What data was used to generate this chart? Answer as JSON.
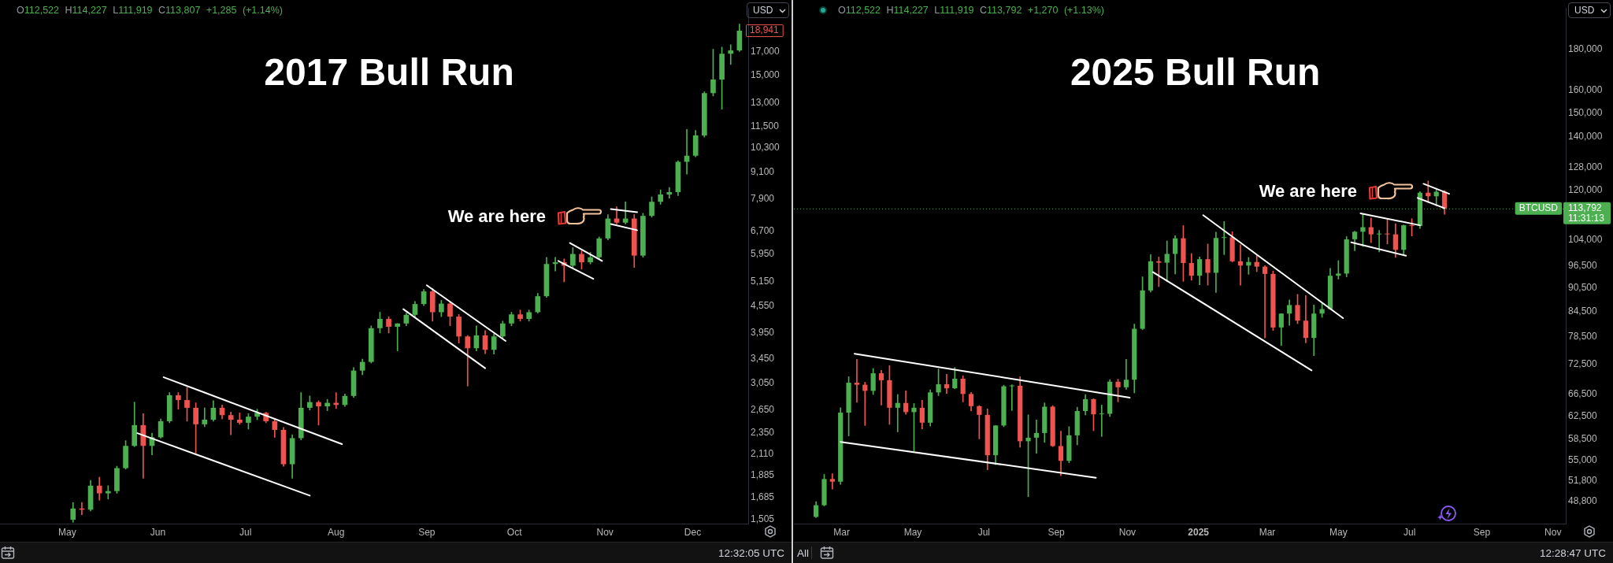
{
  "chart_data": [
    {
      "type": "candlestick",
      "title": "2017 Bull Run",
      "log": true,
      "xlim": [
        "2017-04-08",
        "2017-12-20"
      ],
      "xticks": [
        {
          "value": "2017-05-01",
          "label": "May"
        },
        {
          "value": "2017-06-01",
          "label": "Jun"
        },
        {
          "value": "2017-07-01",
          "label": "Jul"
        },
        {
          "value": "2017-08-01",
          "label": "Aug"
        },
        {
          "value": "2017-09-01",
          "label": "Sep"
        },
        {
          "value": "2017-10-01",
          "label": "Oct"
        },
        {
          "value": "2017-11-01",
          "label": "Nov"
        },
        {
          "value": "2017-12-01",
          "label": "Dec"
        }
      ],
      "ylim": [
        1470,
        21300
      ],
      "yticks": [
        {
          "value": 1505,
          "label": "1,505"
        },
        {
          "value": 1685,
          "label": "1,685"
        },
        {
          "value": 1885,
          "label": "1,885"
        },
        {
          "value": 2110,
          "label": "2,110"
        },
        {
          "value": 2350,
          "label": "2,350"
        },
        {
          "value": 2650,
          "label": "2,650"
        },
        {
          "value": 3050,
          "label": "3,050"
        },
        {
          "value": 3450,
          "label": "3,450"
        },
        {
          "value": 3950,
          "label": "3,950"
        },
        {
          "value": 4550,
          "label": "4,550"
        },
        {
          "value": 5150,
          "label": "5,150"
        },
        {
          "value": 5950,
          "label": "5,950"
        },
        {
          "value": 6700,
          "label": "6,700"
        },
        {
          "value": 7900,
          "label": "7,900"
        },
        {
          "value": 9100,
          "label": "9,100"
        },
        {
          "value": 10300,
          "label": "10,300"
        },
        {
          "value": 11500,
          "label": "11,500"
        },
        {
          "value": 13000,
          "label": "13,000"
        },
        {
          "value": 15000,
          "label": "15,000"
        },
        {
          "value": 17000,
          "label": "17,000"
        }
      ],
      "x": [
        "2017-05-03",
        "2017-05-06",
        "2017-05-09",
        "2017-05-12",
        "2017-05-15",
        "2017-05-18",
        "2017-05-21",
        "2017-05-24",
        "2017-05-27",
        "2017-05-30",
        "2017-06-02",
        "2017-06-05",
        "2017-06-08",
        "2017-06-11",
        "2017-06-14",
        "2017-06-17",
        "2017-06-20",
        "2017-06-23",
        "2017-06-26",
        "2017-06-29",
        "2017-07-02",
        "2017-07-05",
        "2017-07-08",
        "2017-07-11",
        "2017-07-14",
        "2017-07-17",
        "2017-07-20",
        "2017-07-23",
        "2017-07-26",
        "2017-07-29",
        "2017-08-01",
        "2017-08-04",
        "2017-08-07",
        "2017-08-10",
        "2017-08-13",
        "2017-08-16",
        "2017-08-19",
        "2017-08-22",
        "2017-08-25",
        "2017-08-28",
        "2017-08-31",
        "2017-09-03",
        "2017-09-06",
        "2017-09-09",
        "2017-09-12",
        "2017-09-15",
        "2017-09-18",
        "2017-09-21",
        "2017-09-24",
        "2017-09-27",
        "2017-09-30",
        "2017-10-03",
        "2017-10-06",
        "2017-10-09",
        "2017-10-12",
        "2017-10-15",
        "2017-10-18",
        "2017-10-21",
        "2017-10-24",
        "2017-10-27",
        "2017-10-30",
        "2017-11-02",
        "2017-11-05",
        "2017-11-08",
        "2017-11-11",
        "2017-11-14",
        "2017-11-17",
        "2017-11-20",
        "2017-11-23",
        "2017-11-26",
        "2017-11-29",
        "2017-12-02",
        "2017-12-05",
        "2017-12-08",
        "2017-12-11",
        "2017-12-14",
        "2017-12-17"
      ],
      "ohlc": [
        [
          1500,
          1640,
          1480,
          1590
        ],
        [
          1590,
          1640,
          1540,
          1580
        ],
        [
          1580,
          1840,
          1570,
          1790
        ],
        [
          1790,
          1870,
          1660,
          1720
        ],
        [
          1720,
          1790,
          1670,
          1740
        ],
        [
          1740,
          1980,
          1720,
          1960
        ],
        [
          1960,
          2260,
          1950,
          2200
        ],
        [
          2200,
          2760,
          2190,
          2450
        ],
        [
          2450,
          2600,
          1860,
          2200
        ],
        [
          2200,
          2350,
          2100,
          2300
        ],
        [
          2300,
          2530,
          2290,
          2500
        ],
        [
          2500,
          2900,
          2480,
          2860
        ],
        [
          2860,
          2900,
          2660,
          2790
        ],
        [
          2790,
          2980,
          2500,
          2680
        ],
        [
          2680,
          2750,
          2120,
          2460
        ],
        [
          2460,
          2680,
          2430,
          2520
        ],
        [
          2520,
          2780,
          2500,
          2680
        ],
        [
          2680,
          2720,
          2530,
          2580
        ],
        [
          2580,
          2620,
          2330,
          2520
        ],
        [
          2520,
          2610,
          2460,
          2480
        ],
        [
          2480,
          2600,
          2400,
          2560
        ],
        [
          2560,
          2660,
          2520,
          2610
        ],
        [
          2610,
          2620,
          2480,
          2500
        ],
        [
          2500,
          2530,
          2300,
          2390
        ],
        [
          2390,
          2420,
          1980,
          2000
        ],
        [
          2000,
          2330,
          1860,
          2290
        ],
        [
          2290,
          2900,
          2270,
          2680
        ],
        [
          2680,
          2850,
          2650,
          2760
        ],
        [
          2760,
          2780,
          2450,
          2700
        ],
        [
          2700,
          2800,
          2640,
          2750
        ],
        [
          2750,
          2900,
          2670,
          2720
        ],
        [
          2720,
          2880,
          2700,
          2850
        ],
        [
          2850,
          3300,
          2830,
          3250
        ],
        [
          3250,
          3450,
          3180,
          3400
        ],
        [
          3400,
          4100,
          3380,
          4050
        ],
        [
          4050,
          4400,
          3950,
          4250
        ],
        [
          4250,
          4300,
          3950,
          4080
        ],
        [
          4080,
          4150,
          3600,
          4150
        ],
        [
          4150,
          4380,
          4100,
          4340
        ],
        [
          4340,
          4650,
          4300,
          4590
        ],
        [
          4590,
          4950,
          4550,
          4900
        ],
        [
          4900,
          4980,
          4200,
          4400
        ],
        [
          4400,
          4680,
          4300,
          4600
        ],
        [
          4600,
          4650,
          4100,
          4300
        ],
        [
          4300,
          4350,
          3750,
          3880
        ],
        [
          3880,
          3900,
          3000,
          3650
        ],
        [
          3650,
          4100,
          3600,
          3900
        ],
        [
          3900,
          4000,
          3550,
          3620
        ],
        [
          3620,
          3930,
          3540,
          3880
        ],
        [
          3880,
          4200,
          3850,
          4150
        ],
        [
          4150,
          4400,
          4100,
          4350
        ],
        [
          4350,
          4450,
          4200,
          4250
        ],
        [
          4250,
          4450,
          4200,
          4400
        ],
        [
          4400,
          4850,
          4380,
          4780
        ],
        [
          4780,
          5850,
          4750,
          5650
        ],
        [
          5650,
          5850,
          5450,
          5700
        ],
        [
          5700,
          5800,
          5150,
          5600
        ],
        [
          5600,
          6150,
          5550,
          5950
        ],
        [
          5950,
          6050,
          5500,
          5700
        ],
        [
          5700,
          6000,
          5650,
          5850
        ],
        [
          5850,
          6500,
          5800,
          6450
        ],
        [
          6450,
          7300,
          6400,
          7150
        ],
        [
          7150,
          7600,
          6950,
          7000
        ],
        [
          7000,
          7800,
          6950,
          7150
        ],
        [
          7150,
          7300,
          5550,
          5900
        ],
        [
          5900,
          7350,
          5850,
          7250
        ],
        [
          7250,
          8000,
          7200,
          7800
        ],
        [
          7800,
          8300,
          7700,
          8100
        ],
        [
          8100,
          8400,
          7950,
          8200
        ],
        [
          8200,
          9650,
          8050,
          9600
        ],
        [
          9600,
          11350,
          9000,
          9900
        ],
        [
          9900,
          11300,
          9850,
          11000
        ],
        [
          11000,
          13800,
          10900,
          13700
        ],
        [
          13700,
          17200,
          13500,
          14700
        ],
        [
          14700,
          17400,
          12600,
          16800
        ],
        [
          16800,
          17600,
          15900,
          17100
        ],
        [
          17100,
          19600,
          17000,
          18941
        ]
      ],
      "series": [
        {
          "type": "line",
          "color": "#ffffff",
          "x": [
            "2017-06-03",
            "2017-08-03"
          ],
          "values": [
            3140,
            2220
          ]
        },
        {
          "type": "line",
          "color": "#ffffff",
          "x": [
            "2017-05-25",
            "2017-07-23"
          ],
          "values": [
            2350,
            1700
          ]
        },
        {
          "type": "line",
          "color": "#ffffff",
          "x": [
            "2017-09-01",
            "2017-09-28"
          ],
          "values": [
            5060,
            3790
          ]
        },
        {
          "type": "line",
          "color": "#ffffff",
          "x": [
            "2017-08-24",
            "2017-09-21"
          ],
          "values": [
            4470,
            3290
          ]
        },
        {
          "type": "line",
          "color": "#ffffff",
          "x": [
            "2017-10-20",
            "2017-10-31"
          ],
          "values": [
            6300,
            5740
          ]
        },
        {
          "type": "line",
          "color": "#ffffff",
          "x": [
            "2017-10-16",
            "2017-10-28"
          ],
          "values": [
            5740,
            5230
          ]
        },
        {
          "type": "line",
          "color": "#ffffff",
          "x": [
            "2017-11-03",
            "2017-11-12"
          ],
          "values": [
            7510,
            7390
          ]
        },
        {
          "type": "line",
          "color": "#ffffff",
          "x": [
            "2017-11-03",
            "2017-11-12"
          ],
          "values": [
            6950,
            6730
          ]
        }
      ],
      "annotations": [
        "O112,522 H114,227 L111,919 C113,807 +1,285 (+1.14%)",
        "USD",
        "12:32:05 UTC",
        "18,941",
        "We are here"
      ]
    },
    {
      "type": "candlestick",
      "title": "2025 Bull Run",
      "log": true,
      "xlim": [
        "2024-01-20",
        "2025-11-12"
      ],
      "xticks": [
        {
          "value": "2024-03-01",
          "label": "Mar"
        },
        {
          "value": "2024-05-01",
          "label": "May"
        },
        {
          "value": "2024-07-01",
          "label": "Jul"
        },
        {
          "value": "2024-09-01",
          "label": "Sep"
        },
        {
          "value": "2024-11-01",
          "label": "Nov"
        },
        {
          "value": "2025-01-01",
          "label": "2025"
        },
        {
          "value": "2025-03-01",
          "label": "Mar"
        },
        {
          "value": "2025-05-01",
          "label": "May"
        },
        {
          "value": "2025-07-01",
          "label": "Jul"
        },
        {
          "value": "2025-09-01",
          "label": "Sep"
        },
        {
          "value": "2025-11-01",
          "label": "Nov"
        }
      ],
      "ylim": [
        45800,
        203000
      ],
      "yticks": [
        {
          "value": 48800,
          "label": "48,800"
        },
        {
          "value": 51800,
          "label": "51,800"
        },
        {
          "value": 55000,
          "label": "55,000"
        },
        {
          "value": 58500,
          "label": "58,500"
        },
        {
          "value": 62500,
          "label": "62,500"
        },
        {
          "value": 66500,
          "label": "66,500"
        },
        {
          "value": 72500,
          "label": "72,500"
        },
        {
          "value": 78500,
          "label": "78,500"
        },
        {
          "value": 84500,
          "label": "84,500"
        },
        {
          "value": 90500,
          "label": "90,500"
        },
        {
          "value": 96500,
          "label": "96,500"
        },
        {
          "value": 104000,
          "label": "104,000"
        },
        {
          "value": 120000,
          "label": "120,000"
        },
        {
          "value": 128000,
          "label": "128,000"
        },
        {
          "value": 140000,
          "label": "140,000"
        },
        {
          "value": 150000,
          "label": "150,000"
        },
        {
          "value": 160000,
          "label": "160,000"
        },
        {
          "value": 180000,
          "label": "180,000"
        }
      ],
      "x": [
        "2024-02-08",
        "2024-02-15",
        "2024-02-22",
        "2024-02-29",
        "2024-03-07",
        "2024-03-14",
        "2024-03-21",
        "2024-03-28",
        "2024-04-04",
        "2024-04-11",
        "2024-04-18",
        "2024-04-25",
        "2024-05-02",
        "2024-05-09",
        "2024-05-16",
        "2024-05-23",
        "2024-05-30",
        "2024-06-06",
        "2024-06-13",
        "2024-06-20",
        "2024-06-27",
        "2024-07-04",
        "2024-07-11",
        "2024-07-18",
        "2024-07-25",
        "2024-08-01",
        "2024-08-08",
        "2024-08-15",
        "2024-08-22",
        "2024-08-29",
        "2024-09-05",
        "2024-09-12",
        "2024-09-19",
        "2024-09-26",
        "2024-10-03",
        "2024-10-10",
        "2024-10-17",
        "2024-10-24",
        "2024-10-31",
        "2024-11-07",
        "2024-11-14",
        "2024-11-21",
        "2024-11-28",
        "2024-12-05",
        "2024-12-12",
        "2024-12-19",
        "2024-12-26",
        "2025-01-02",
        "2025-01-09",
        "2025-01-16",
        "2025-01-23",
        "2025-01-30",
        "2025-02-06",
        "2025-02-13",
        "2025-02-20",
        "2025-02-27",
        "2025-03-06",
        "2025-03-13",
        "2025-03-20",
        "2025-03-27",
        "2025-04-03",
        "2025-04-10",
        "2025-04-17",
        "2025-04-24",
        "2025-05-01",
        "2025-05-08",
        "2025-05-15",
        "2025-05-22",
        "2025-05-29",
        "2025-06-05",
        "2025-06-12",
        "2025-06-19",
        "2025-06-26",
        "2025-07-03",
        "2025-07-10",
        "2025-07-17",
        "2025-07-24",
        "2025-07-31"
      ],
      "ohlc": [
        [
          46700,
          48800,
          46600,
          48300
        ],
        [
          48300,
          52800,
          48200,
          52100
        ],
        [
          52100,
          52900,
          50600,
          51700
        ],
        [
          51700,
          64000,
          51300,
          63100
        ],
        [
          63100,
          70000,
          59000,
          68800
        ],
        [
          68800,
          73600,
          65000,
          68400
        ],
        [
          68400,
          68900,
          60800,
          67200
        ],
        [
          67200,
          71700,
          66500,
          70700
        ],
        [
          70700,
          71300,
          64500,
          69300
        ],
        [
          69300,
          72300,
          61000,
          64000
        ],
        [
          64000,
          66500,
          59700,
          64900
        ],
        [
          64900,
          67200,
          62800,
          63200
        ],
        [
          63200,
          64800,
          56500,
          64000
        ],
        [
          64000,
          65400,
          60200,
          61300
        ],
        [
          61300,
          67400,
          60700,
          66900
        ],
        [
          66900,
          71600,
          66300,
          68500
        ],
        [
          68500,
          70500,
          66700,
          67700
        ],
        [
          67700,
          71900,
          67600,
          69600
        ],
        [
          69600,
          70200,
          65100,
          66600
        ],
        [
          66600,
          66900,
          63400,
          64300
        ],
        [
          64300,
          64400,
          58500,
          62700
        ],
        [
          62700,
          63800,
          53500,
          55800
        ],
        [
          55800,
          60800,
          54300,
          60800
        ],
        [
          60800,
          68300,
          60600,
          68100
        ],
        [
          68100,
          68400,
          63500,
          68200
        ],
        [
          68200,
          70000,
          57100,
          58100
        ],
        [
          58100,
          62700,
          49500,
          58700
        ],
        [
          58700,
          61800,
          56100,
          59500
        ],
        [
          59500,
          64900,
          57900,
          64200
        ],
        [
          64200,
          64400,
          57200,
          57300
        ],
        [
          57300,
          59800,
          52600,
          54900
        ],
        [
          54900,
          60600,
          54600,
          59100
        ],
        [
          59100,
          64100,
          57500,
          63400
        ],
        [
          63400,
          66500,
          62700,
          65600
        ],
        [
          65600,
          65700,
          59900,
          62800
        ],
        [
          62800,
          64500,
          58900,
          62900
        ],
        [
          62900,
          69400,
          62400,
          69000
        ],
        [
          69000,
          69500,
          65100,
          67900
        ],
        [
          67900,
          73600,
          67500,
          69400
        ],
        [
          69400,
          81500,
          66800,
          80400
        ],
        [
          80400,
          93400,
          80200,
          89800
        ],
        [
          89800,
          99600,
          89400,
          97700
        ],
        [
          97700,
          98900,
          90800,
          97300
        ],
        [
          97300,
          103600,
          92100,
          99800
        ],
        [
          99800,
          105200,
          94200,
          104400
        ],
        [
          104400,
          108300,
          92200,
          97200
        ],
        [
          97200,
          99900,
          92500,
          93700
        ],
        [
          93700,
          98900,
          91300,
          98300
        ],
        [
          98300,
          102700,
          91200,
          94500
        ],
        [
          94500,
          106300,
          89300,
          104500
        ],
        [
          104500,
          109600,
          99600,
          104700
        ],
        [
          104700,
          106400,
          97500,
          97700
        ],
        [
          97700,
          102500,
          91200,
          96500
        ],
        [
          96500,
          98800,
          94100,
          97500
        ],
        [
          97500,
          99500,
          94800,
          96200
        ],
        [
          96200,
          96500,
          78300,
          94200
        ],
        [
          94200,
          95000,
          80000,
          80700
        ],
        [
          80700,
          84000,
          76600,
          84000
        ],
        [
          84000,
          87400,
          81200,
          86100
        ],
        [
          86100,
          88800,
          81600,
          82300
        ],
        [
          82300,
          88500,
          77200,
          78300
        ],
        [
          78300,
          86100,
          74400,
          84000
        ],
        [
          84000,
          86500,
          83100,
          85100
        ],
        [
          85100,
          95700,
          85000,
          93700
        ],
        [
          93700,
          97900,
          92800,
          94300
        ],
        [
          94300,
          104900,
          93400,
          104100
        ],
        [
          104100,
          106600,
          100700,
          106400
        ],
        [
          106400,
          111900,
          102000,
          107800
        ],
        [
          107800,
          110700,
          103100,
          105600
        ],
        [
          105600,
          106800,
          100400,
          105700
        ],
        [
          105700,
          110400,
          102700,
          105600
        ],
        [
          105600,
          108900,
          98800,
          101000
        ],
        [
          101000,
          108500,
          99600,
          108400
        ],
        [
          108400,
          110500,
          105100,
          108200
        ],
        [
          108200,
          119500,
          107400,
          119100
        ],
        [
          119100,
          123200,
          115800,
          117900
        ],
        [
          117900,
          120200,
          114700,
          119400
        ],
        [
          119400,
          119800,
          111900,
          113792
        ]
      ],
      "series": [
        {
          "type": "line",
          "color": "#ffffff",
          "x": [
            "2024-03-12",
            "2024-11-03"
          ],
          "values": [
            74800,
            65900
          ]
        },
        {
          "type": "line",
          "color": "#ffffff",
          "x": [
            "2024-02-29",
            "2024-10-05"
          ],
          "values": [
            58000,
            52300
          ]
        },
        {
          "type": "line",
          "color": "#ffffff",
          "x": [
            "2025-01-05",
            "2025-05-05"
          ],
          "values": [
            111600,
            82900
          ]
        },
        {
          "type": "line",
          "color": "#ffffff",
          "x": [
            "2024-11-23",
            "2025-04-08"
          ],
          "values": [
            94700,
            71300
          ]
        },
        {
          "type": "line",
          "color": "#ffffff",
          "x": [
            "2025-05-20",
            "2025-07-10"
          ],
          "values": [
            112200,
            108400
          ]
        },
        {
          "type": "line",
          "color": "#ffffff",
          "x": [
            "2025-05-12",
            "2025-06-28"
          ],
          "values": [
            103200,
            99300
          ]
        },
        {
          "type": "line",
          "color": "#ffffff",
          "x": [
            "2025-07-13",
            "2025-08-04"
          ],
          "values": [
            122200,
            118700
          ]
        },
        {
          "type": "line",
          "color": "#ffffff",
          "x": [
            "2025-07-08",
            "2025-07-31"
          ],
          "values": [
            117300,
            113900
          ]
        }
      ],
      "ref_lines": [
        {
          "axis": "y",
          "value": 113792,
          "label": "113,792",
          "color": "#4caf50",
          "line_style": "dotted"
        }
      ],
      "annotations": [
        "O112,522 H114,227 L111,919 C113,792 +1,270 (+1.13%)",
        "USD",
        "12:28:47 UTC",
        "All",
        "11:31:13",
        {
          "text": "BTCUSD",
          "y": 113792
        },
        "We are here"
      ]
    }
  ]
}
